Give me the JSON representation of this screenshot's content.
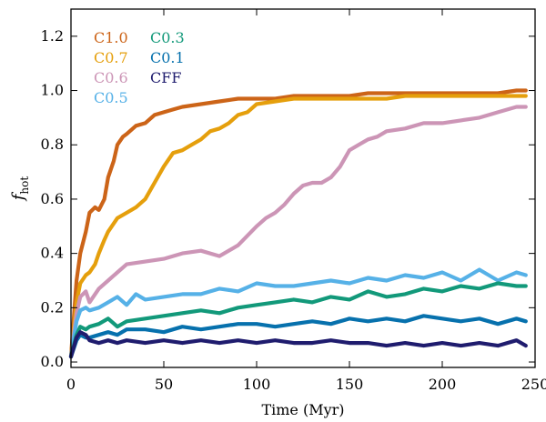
{
  "chart_data": {
    "type": "line",
    "title": "",
    "xlabel": "Time (Myr)",
    "ylabel": "f",
    "ylabel_sub": "hot",
    "xlim": [
      0,
      250
    ],
    "ylim": [
      -0.02,
      1.3
    ],
    "xticks": [
      0,
      50,
      100,
      150,
      200,
      250
    ],
    "yticks": [
      0.0,
      0.2,
      0.4,
      0.6,
      0.8,
      1.0,
      1.2
    ],
    "grid": false,
    "legend": "top-left",
    "series": [
      {
        "name": "C1.0",
        "color": "#cc6418",
        "x": [
          0,
          3,
          5,
          8,
          10,
          13,
          15,
          18,
          20,
          23,
          25,
          28,
          30,
          35,
          40,
          45,
          50,
          55,
          60,
          70,
          80,
          90,
          100,
          110,
          120,
          130,
          140,
          150,
          160,
          170,
          180,
          190,
          200,
          210,
          220,
          230,
          240,
          245
        ],
        "y": [
          0.02,
          0.3,
          0.4,
          0.48,
          0.55,
          0.57,
          0.56,
          0.6,
          0.68,
          0.74,
          0.8,
          0.83,
          0.84,
          0.87,
          0.88,
          0.91,
          0.92,
          0.93,
          0.94,
          0.95,
          0.96,
          0.97,
          0.97,
          0.97,
          0.98,
          0.98,
          0.98,
          0.98,
          0.99,
          0.99,
          0.99,
          0.99,
          0.99,
          0.99,
          0.99,
          0.99,
          1.0,
          1.0
        ]
      },
      {
        "name": "C0.7",
        "color": "#e59f0c",
        "x": [
          0,
          3,
          5,
          8,
          10,
          13,
          15,
          18,
          20,
          25,
          30,
          35,
          40,
          45,
          50,
          55,
          60,
          65,
          70,
          75,
          80,
          85,
          90,
          95,
          100,
          110,
          120,
          130,
          140,
          150,
          160,
          170,
          180,
          190,
          200,
          210,
          220,
          230,
          240,
          245
        ],
        "y": [
          0.02,
          0.22,
          0.29,
          0.32,
          0.33,
          0.36,
          0.4,
          0.45,
          0.48,
          0.53,
          0.55,
          0.57,
          0.6,
          0.66,
          0.72,
          0.77,
          0.78,
          0.8,
          0.82,
          0.85,
          0.86,
          0.88,
          0.91,
          0.92,
          0.95,
          0.96,
          0.97,
          0.97,
          0.97,
          0.97,
          0.97,
          0.97,
          0.98,
          0.98,
          0.98,
          0.98,
          0.98,
          0.98,
          0.98,
          0.98
        ]
      },
      {
        "name": "C0.6",
        "color": "#cc95b6",
        "x": [
          0,
          3,
          5,
          8,
          10,
          15,
          20,
          25,
          30,
          40,
          50,
          60,
          70,
          80,
          90,
          100,
          105,
          110,
          115,
          120,
          125,
          130,
          135,
          140,
          145,
          150,
          155,
          160,
          165,
          170,
          180,
          190,
          200,
          210,
          220,
          230,
          240,
          245
        ],
        "y": [
          0.02,
          0.18,
          0.24,
          0.26,
          0.22,
          0.27,
          0.3,
          0.33,
          0.36,
          0.37,
          0.38,
          0.4,
          0.41,
          0.39,
          0.43,
          0.5,
          0.53,
          0.55,
          0.58,
          0.62,
          0.65,
          0.66,
          0.66,
          0.68,
          0.72,
          0.78,
          0.8,
          0.82,
          0.83,
          0.85,
          0.86,
          0.88,
          0.88,
          0.89,
          0.9,
          0.92,
          0.94,
          0.94
        ]
      },
      {
        "name": "C0.5",
        "color": "#56b1e7",
        "x": [
          0,
          3,
          5,
          8,
          10,
          15,
          20,
          25,
          30,
          35,
          40,
          50,
          60,
          70,
          80,
          90,
          100,
          110,
          120,
          130,
          140,
          150,
          160,
          170,
          180,
          190,
          200,
          210,
          220,
          230,
          240,
          245
        ],
        "y": [
          0.02,
          0.15,
          0.19,
          0.2,
          0.19,
          0.2,
          0.22,
          0.24,
          0.21,
          0.25,
          0.23,
          0.24,
          0.25,
          0.25,
          0.27,
          0.26,
          0.29,
          0.28,
          0.28,
          0.29,
          0.3,
          0.29,
          0.31,
          0.3,
          0.32,
          0.31,
          0.33,
          0.3,
          0.34,
          0.3,
          0.33,
          0.32
        ]
      },
      {
        "name": "C0.3",
        "color": "#12997a",
        "x": [
          0,
          3,
          5,
          8,
          10,
          15,
          20,
          25,
          30,
          40,
          50,
          60,
          70,
          80,
          90,
          100,
          110,
          120,
          130,
          140,
          150,
          160,
          170,
          180,
          190,
          200,
          210,
          220,
          230,
          240,
          245
        ],
        "y": [
          0.02,
          0.1,
          0.13,
          0.12,
          0.13,
          0.14,
          0.16,
          0.13,
          0.15,
          0.16,
          0.17,
          0.18,
          0.19,
          0.18,
          0.2,
          0.21,
          0.22,
          0.23,
          0.22,
          0.24,
          0.23,
          0.26,
          0.24,
          0.25,
          0.27,
          0.26,
          0.28,
          0.27,
          0.29,
          0.28,
          0.28
        ]
      },
      {
        "name": "C0.1",
        "color": "#0771ad",
        "x": [
          0,
          3,
          5,
          8,
          10,
          15,
          20,
          25,
          30,
          40,
          50,
          60,
          70,
          80,
          90,
          100,
          110,
          120,
          130,
          140,
          150,
          160,
          170,
          180,
          190,
          200,
          210,
          220,
          230,
          240,
          245
        ],
        "y": [
          0.02,
          0.08,
          0.1,
          0.09,
          0.09,
          0.1,
          0.11,
          0.1,
          0.12,
          0.12,
          0.11,
          0.13,
          0.12,
          0.13,
          0.14,
          0.14,
          0.13,
          0.14,
          0.15,
          0.14,
          0.16,
          0.15,
          0.16,
          0.15,
          0.17,
          0.16,
          0.15,
          0.16,
          0.14,
          0.16,
          0.15
        ]
      },
      {
        "name": "CFF",
        "color": "#1f1c6e",
        "x": [
          0,
          3,
          5,
          8,
          10,
          15,
          20,
          25,
          30,
          40,
          50,
          60,
          70,
          80,
          90,
          100,
          110,
          120,
          130,
          140,
          150,
          160,
          170,
          180,
          190,
          200,
          210,
          220,
          230,
          240,
          245
        ],
        "y": [
          0.02,
          0.09,
          0.11,
          0.1,
          0.08,
          0.07,
          0.08,
          0.07,
          0.08,
          0.07,
          0.08,
          0.07,
          0.08,
          0.07,
          0.08,
          0.07,
          0.08,
          0.07,
          0.07,
          0.08,
          0.07,
          0.07,
          0.06,
          0.07,
          0.06,
          0.07,
          0.06,
          0.07,
          0.06,
          0.08,
          0.06
        ]
      }
    ]
  }
}
